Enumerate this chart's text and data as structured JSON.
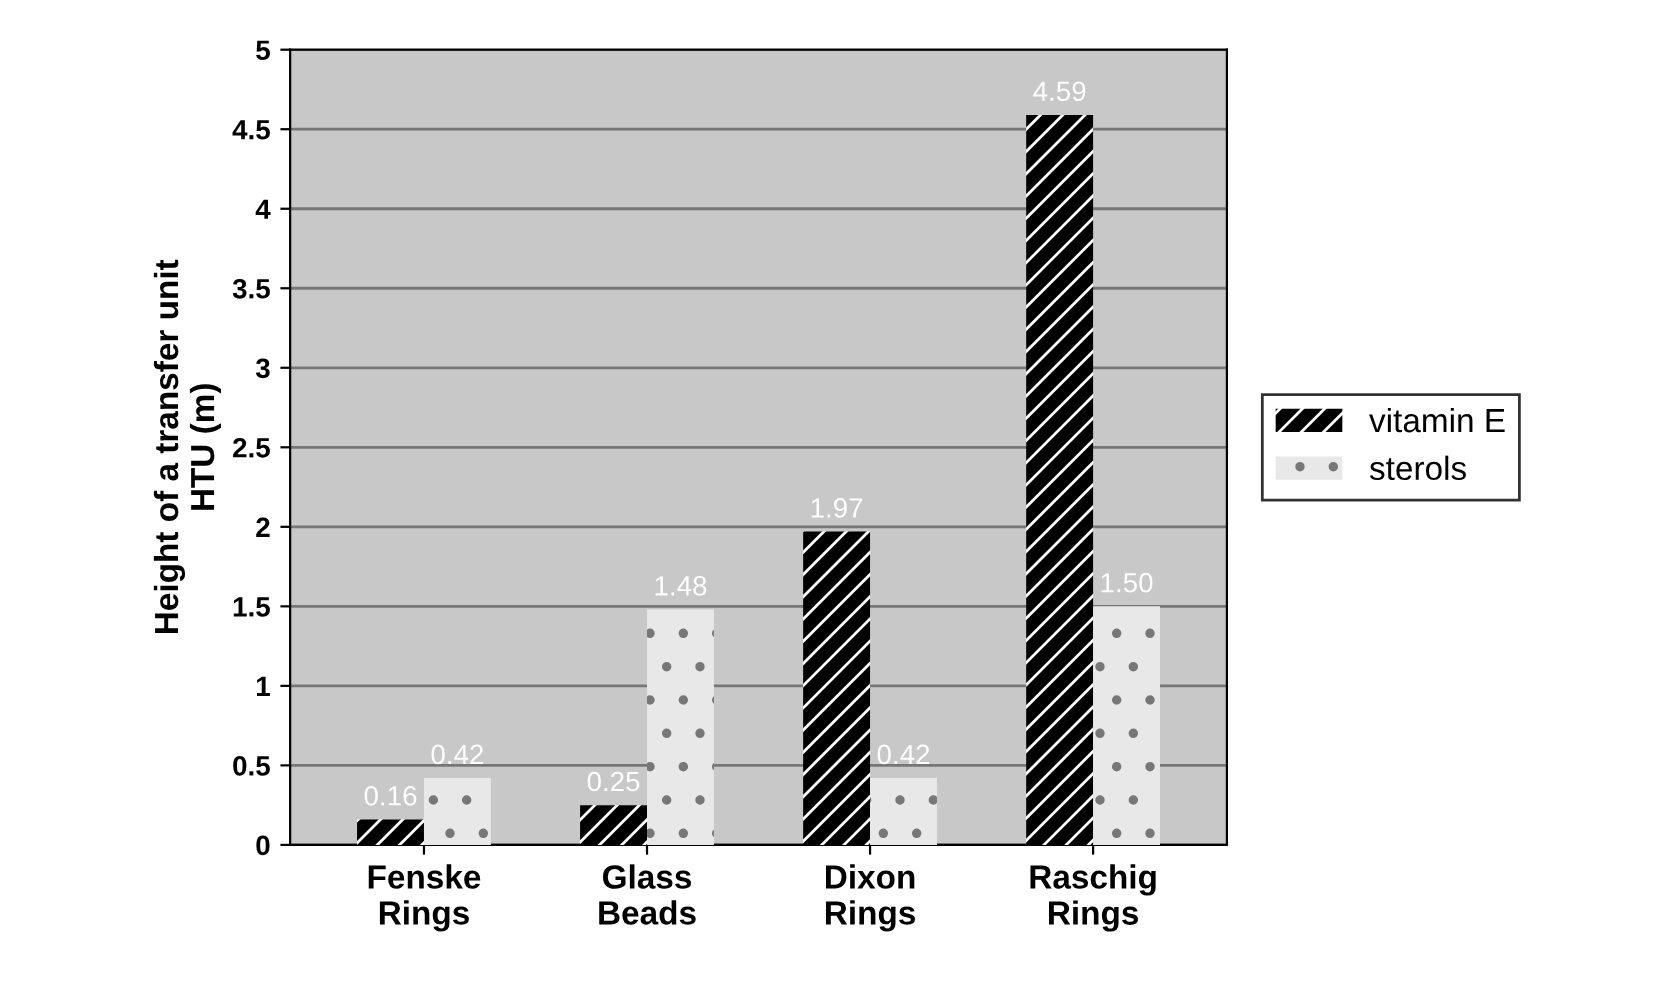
{
  "chart_data": {
    "type": "bar",
    "ylabel": "Height of a transfer unit\nHTU (m)",
    "categories": [
      "Fenske\nRings",
      "Glass\nBeads",
      "Dixon\nRings",
      "Raschig\nRings"
    ],
    "series": [
      {
        "name": "vitamin E",
        "color": "#000000",
        "values": [
          0.16,
          0.25,
          1.97,
          4.59
        ]
      },
      {
        "name": "sterols",
        "color": "#e8e8e8",
        "values": [
          0.42,
          1.48,
          0.42,
          1.5
        ]
      }
    ],
    "value_labels": [
      [
        "0.16",
        "0.25",
        "1.97",
        "4.59"
      ],
      [
        "0.42",
        "1.48",
        "0.42",
        "1.50"
      ]
    ],
    "ylim": [
      0,
      5
    ],
    "yticks": [
      0,
      0.5,
      1,
      1.5,
      2,
      2.5,
      3,
      3.5,
      4,
      4.5,
      5
    ],
    "grid": "y",
    "legend": "right"
  }
}
